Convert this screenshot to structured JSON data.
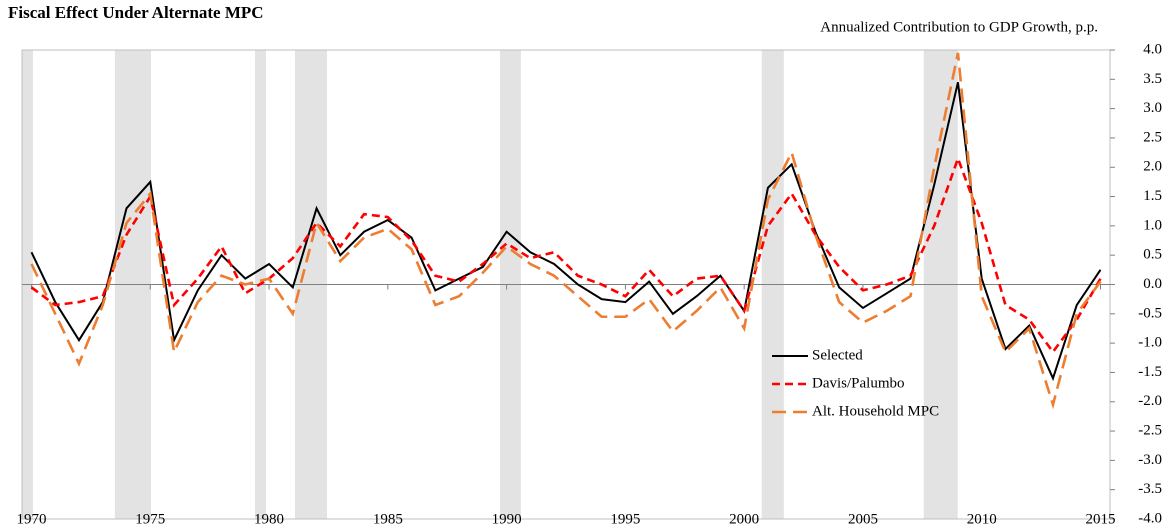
{
  "chart_data": {
    "type": "line",
    "title": "Fiscal Effect Under Alternate MPC",
    "y_axis_label": "Annualized Contribution to GDP Growth, p.p.",
    "x": [
      1970,
      1971,
      1972,
      1973,
      1974,
      1975,
      1976,
      1977,
      1978,
      1979,
      1980,
      1981,
      1982,
      1983,
      1984,
      1985,
      1986,
      1987,
      1988,
      1989,
      1990,
      1991,
      1992,
      1993,
      1994,
      1995,
      1996,
      1997,
      1998,
      1999,
      2000,
      2001,
      2002,
      2003,
      2004,
      2005,
      2006,
      2007,
      2008,
      2009,
      2010,
      2011,
      2012,
      2013,
      2014,
      2015
    ],
    "series": [
      {
        "name": "Selected",
        "color": "#000000",
        "dash": "solid",
        "values": [
          0.55,
          -0.3,
          -0.95,
          -0.3,
          1.3,
          1.75,
          -0.95,
          -0.1,
          0.5,
          0.1,
          0.35,
          -0.05,
          1.3,
          0.5,
          0.9,
          1.1,
          0.8,
          -0.1,
          0.1,
          0.3,
          0.9,
          0.55,
          0.35,
          0.0,
          -0.25,
          -0.3,
          0.05,
          -0.5,
          -0.2,
          0.15,
          -0.45,
          1.65,
          2.05,
          0.9,
          -0.05,
          -0.4,
          -0.15,
          0.1,
          1.7,
          3.45,
          0.1,
          -1.1,
          -0.7,
          -1.6,
          -0.35,
          0.25
        ]
      },
      {
        "name": "Davis/Palumbo",
        "color": "#ff0000",
        "dash": "short",
        "values": [
          -0.05,
          -0.35,
          -0.3,
          -0.2,
          0.85,
          1.5,
          -0.35,
          0.1,
          0.65,
          -0.15,
          0.1,
          0.45,
          1.05,
          0.65,
          1.2,
          1.15,
          0.75,
          0.15,
          0.05,
          0.35,
          0.7,
          0.45,
          0.55,
          0.15,
          0.0,
          -0.2,
          0.25,
          -0.2,
          0.1,
          0.15,
          -0.45,
          1.0,
          1.55,
          0.85,
          0.3,
          -0.1,
          0.0,
          0.15,
          1.0,
          2.15,
          1.05,
          -0.35,
          -0.6,
          -1.15,
          -0.6,
          0.1
        ]
      },
      {
        "name": "Alt. Household MPC",
        "color": "#ed7d31",
        "dash": "long",
        "values": [
          0.35,
          -0.5,
          -1.35,
          -0.35,
          1.05,
          1.55,
          -1.15,
          -0.3,
          0.15,
          0.0,
          0.1,
          -0.5,
          1.05,
          0.4,
          0.8,
          0.95,
          0.6,
          -0.35,
          -0.2,
          0.2,
          0.65,
          0.35,
          0.15,
          -0.2,
          -0.55,
          -0.55,
          -0.25,
          -0.8,
          -0.45,
          -0.05,
          -0.75,
          1.45,
          2.25,
          0.85,
          -0.3,
          -0.65,
          -0.45,
          -0.2,
          2.0,
          3.95,
          -0.2,
          -1.15,
          -0.75,
          -2.05,
          -0.5,
          0.05
        ]
      }
    ],
    "recessions": [
      [
        1969.6,
        1970.06
      ],
      [
        1973.51,
        1975.03
      ],
      [
        1979.41,
        1979.87
      ],
      [
        1981.09,
        1982.44
      ],
      [
        1989.72,
        1990.6
      ],
      [
        2000.74,
        2001.67
      ],
      [
        2007.56,
        2008.99
      ]
    ],
    "recession_color": "#e3e3e3",
    "xlim": [
      1969.6,
      2015.4
    ],
    "xticks": [
      1970,
      1975,
      1980,
      1985,
      1990,
      1995,
      2000,
      2005,
      2010,
      2015
    ],
    "ylim": [
      -4,
      4
    ],
    "yticks": [
      {
        "value": 4,
        "label": "4.0"
      },
      {
        "value": 3.5,
        "label": "3.5"
      },
      {
        "value": 3,
        "label": "3.0"
      },
      {
        "value": 2.5,
        "label": "2.5"
      },
      {
        "value": 2,
        "label": "2.0"
      },
      {
        "value": 1.5,
        "label": "1.5"
      },
      {
        "value": 1,
        "label": "1.0"
      },
      {
        "value": 0.5,
        "label": "0.5"
      },
      {
        "value": 0,
        "label": "0.0"
      },
      {
        "value": -0.5,
        "label": "-0.5"
      },
      {
        "value": -1,
        "label": "-1.0"
      },
      {
        "value": -1.5,
        "label": "-1.5"
      },
      {
        "value": -2,
        "label": "-2.0"
      },
      {
        "value": -2.5,
        "label": "-2.5"
      },
      {
        "value": -3,
        "label": "-3.0"
      },
      {
        "value": -3.5,
        "label": "-3.5"
      },
      {
        "value": -4,
        "label": "-4.0"
      }
    ],
    "y_axis_side": "right",
    "legend_position": "lower-center-right"
  }
}
